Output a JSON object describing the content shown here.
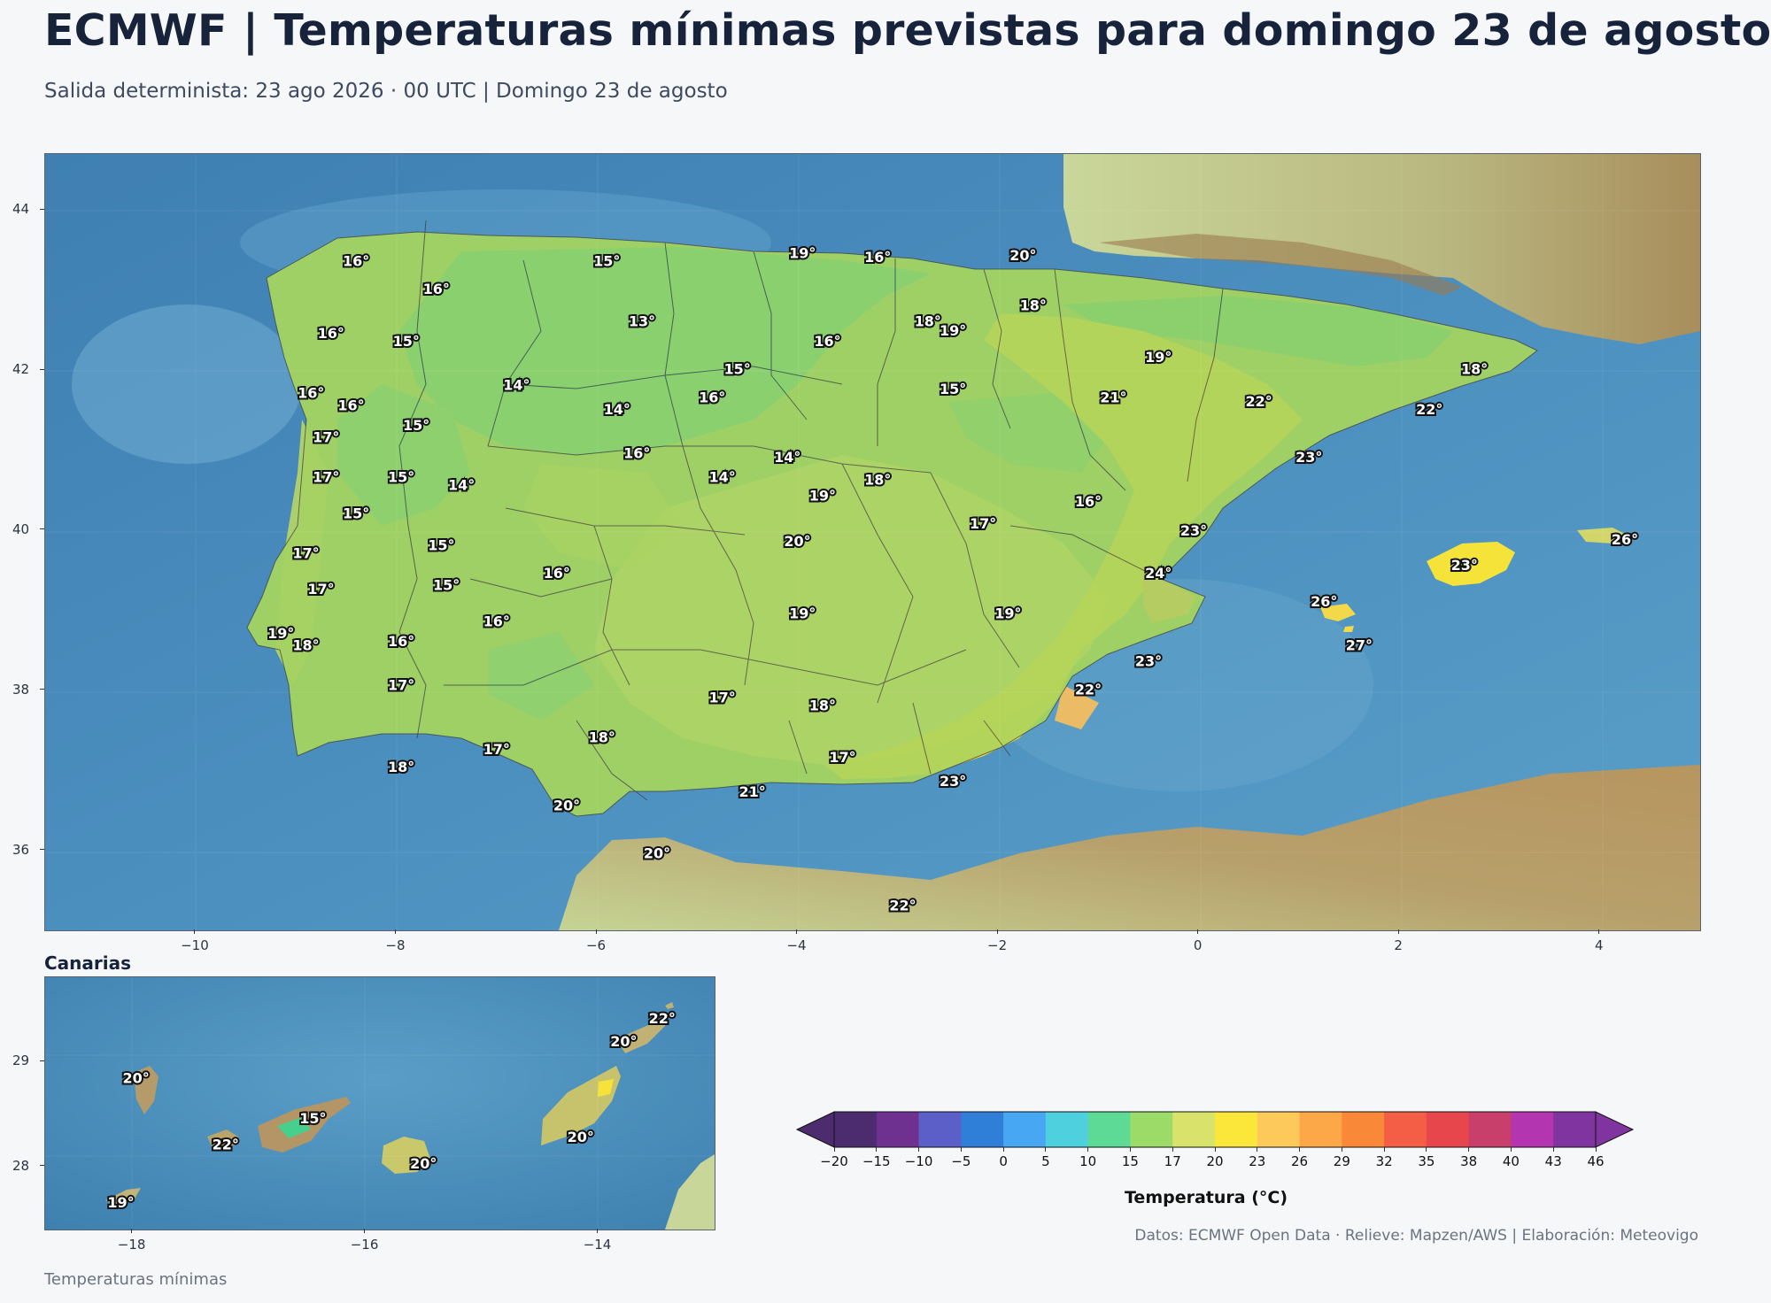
{
  "title": "ECMWF | Temperaturas mínimas previstas para domingo 23 de agosto",
  "subtitle": "Salida determinista: 23 ago 2026 · 00 UTC  |  Domingo 23 de agosto",
  "main_map": {
    "lon_range": [
      -11.5,
      5.0
    ],
    "lat_range": [
      35.0,
      44.7
    ],
    "x_ticks": [
      "−10",
      "−8",
      "−6",
      "−4",
      "−2",
      "0",
      "2",
      "4"
    ],
    "y_ticks": [
      "36",
      "38",
      "40",
      "42",
      "44"
    ],
    "labels": [
      {
        "text": "16°",
        "lon": -8.4,
        "lat": 43.35
      },
      {
        "text": "15°",
        "lon": -5.9,
        "lat": 43.35
      },
      {
        "text": "19°",
        "lon": -3.95,
        "lat": 43.45
      },
      {
        "text": "16°",
        "lon": -3.2,
        "lat": 43.4
      },
      {
        "text": "20°",
        "lon": -1.75,
        "lat": 43.42
      },
      {
        "text": "16°",
        "lon": -7.6,
        "lat": 43.0
      },
      {
        "text": "18°",
        "lon": -1.65,
        "lat": 42.8
      },
      {
        "text": "13°",
        "lon": -5.55,
        "lat": 42.6
      },
      {
        "text": "18°",
        "lon": -2.7,
        "lat": 42.6
      },
      {
        "text": "19°",
        "lon": -2.45,
        "lat": 42.48
      },
      {
        "text": "16°",
        "lon": -8.65,
        "lat": 42.45
      },
      {
        "text": "15°",
        "lon": -7.9,
        "lat": 42.35
      },
      {
        "text": "16°",
        "lon": -3.7,
        "lat": 42.35
      },
      {
        "text": "19°",
        "lon": -0.4,
        "lat": 42.15
      },
      {
        "text": "15°",
        "lon": -4.6,
        "lat": 42.0
      },
      {
        "text": "18°",
        "lon": 2.75,
        "lat": 42.0
      },
      {
        "text": "14°",
        "lon": -6.8,
        "lat": 41.8
      },
      {
        "text": "15°",
        "lon": -2.45,
        "lat": 41.75
      },
      {
        "text": "16°",
        "lon": -8.85,
        "lat": 41.7
      },
      {
        "text": "16°",
        "lon": -4.85,
        "lat": 41.65
      },
      {
        "text": "21°",
        "lon": -0.85,
        "lat": 41.65
      },
      {
        "text": "22°",
        "lon": 0.6,
        "lat": 41.6
      },
      {
        "text": "16°",
        "lon": -8.45,
        "lat": 41.55
      },
      {
        "text": "14°",
        "lon": -5.8,
        "lat": 41.5
      },
      {
        "text": "22°",
        "lon": 2.3,
        "lat": 41.5
      },
      {
        "text": "15°",
        "lon": -7.8,
        "lat": 41.3
      },
      {
        "text": "17°",
        "lon": -8.7,
        "lat": 41.15
      },
      {
        "text": "16°",
        "lon": -5.6,
        "lat": 40.95
      },
      {
        "text": "14°",
        "lon": -4.1,
        "lat": 40.9
      },
      {
        "text": "23°",
        "lon": 1.1,
        "lat": 40.9
      },
      {
        "text": "17°",
        "lon": -8.7,
        "lat": 40.65
      },
      {
        "text": "15°",
        "lon": -7.95,
        "lat": 40.65
      },
      {
        "text": "14°",
        "lon": -7.35,
        "lat": 40.55
      },
      {
        "text": "14°",
        "lon": -4.75,
        "lat": 40.65
      },
      {
        "text": "18°",
        "lon": -3.2,
        "lat": 40.62
      },
      {
        "text": "19°",
        "lon": -3.75,
        "lat": 40.42
      },
      {
        "text": "16°",
        "lon": -1.1,
        "lat": 40.35
      },
      {
        "text": "15°",
        "lon": -8.4,
        "lat": 40.2
      },
      {
        "text": "17°",
        "lon": -2.15,
        "lat": 40.07
      },
      {
        "text": "23°",
        "lon": -0.05,
        "lat": 39.98
      },
      {
        "text": "15°",
        "lon": -7.55,
        "lat": 39.8
      },
      {
        "text": "20°",
        "lon": -4.0,
        "lat": 39.85
      },
      {
        "text": "26°",
        "lon": 4.25,
        "lat": 39.87
      },
      {
        "text": "17°",
        "lon": -8.9,
        "lat": 39.7
      },
      {
        "text": "23°",
        "lon": 2.65,
        "lat": 39.55
      },
      {
        "text": "16°",
        "lon": -6.4,
        "lat": 39.45
      },
      {
        "text": "24°",
        "lon": -0.4,
        "lat": 39.45
      },
      {
        "text": "15°",
        "lon": -7.5,
        "lat": 39.3
      },
      {
        "text": "17°",
        "lon": -8.75,
        "lat": 39.25
      },
      {
        "text": "26°",
        "lon": 1.25,
        "lat": 39.1
      },
      {
        "text": "19°",
        "lon": -3.95,
        "lat": 38.95
      },
      {
        "text": "19°",
        "lon": -1.9,
        "lat": 38.95
      },
      {
        "text": "16°",
        "lon": -7.0,
        "lat": 38.85
      },
      {
        "text": "19°",
        "lon": -9.15,
        "lat": 38.7
      },
      {
        "text": "18°",
        "lon": -8.9,
        "lat": 38.55
      },
      {
        "text": "16°",
        "lon": -7.95,
        "lat": 38.6
      },
      {
        "text": "27°",
        "lon": 1.6,
        "lat": 38.55
      },
      {
        "text": "23°",
        "lon": -0.5,
        "lat": 38.35
      },
      {
        "text": "17°",
        "lon": -7.95,
        "lat": 38.05
      },
      {
        "text": "22°",
        "lon": -1.1,
        "lat": 38.0
      },
      {
        "text": "17°",
        "lon": -4.75,
        "lat": 37.9
      },
      {
        "text": "18°",
        "lon": -3.75,
        "lat": 37.8
      },
      {
        "text": "18°",
        "lon": -5.95,
        "lat": 37.4
      },
      {
        "text": "17°",
        "lon": -7.0,
        "lat": 37.25
      },
      {
        "text": "17°",
        "lon": -3.55,
        "lat": 37.15
      },
      {
        "text": "18°",
        "lon": -7.95,
        "lat": 37.03
      },
      {
        "text": "23°",
        "lon": -2.45,
        "lat": 36.85
      },
      {
        "text": "21°",
        "lon": -4.45,
        "lat": 36.72
      },
      {
        "text": "20°",
        "lon": -6.3,
        "lat": 36.55
      },
      {
        "text": "20°",
        "lon": -5.4,
        "lat": 35.95
      },
      {
        "text": "22°",
        "lon": -2.95,
        "lat": 35.3
      }
    ]
  },
  "inset": {
    "title": "Canarias",
    "lon_range": [
      -18.75,
      -13.0
    ],
    "lat_range": [
      27.4,
      29.8
    ],
    "x_ticks": [
      "−18",
      "−16",
      "−14"
    ],
    "y_ticks": [
      "28",
      "29"
    ],
    "labels": [
      {
        "text": "20°",
        "lon": -17.97,
        "lat": 28.83
      },
      {
        "text": "15°",
        "lon": -16.45,
        "lat": 28.45
      },
      {
        "text": "22°",
        "lon": -17.2,
        "lat": 28.2
      },
      {
        "text": "20°",
        "lon": -15.5,
        "lat": 28.02
      },
      {
        "text": "19°",
        "lon": -18.1,
        "lat": 27.65
      },
      {
        "text": "20°",
        "lon": -14.15,
        "lat": 28.27
      },
      {
        "text": "20°",
        "lon": -13.78,
        "lat": 29.18
      },
      {
        "text": "22°",
        "lon": -13.45,
        "lat": 29.4
      }
    ],
    "footer": "Temperaturas mínimas"
  },
  "colorbar": {
    "label": "Temperatura (°C)",
    "ticks": [
      "−20",
      "−15",
      "−10",
      "−5",
      "0",
      "5",
      "10",
      "15",
      "17",
      "20",
      "23",
      "26",
      "29",
      "32",
      "35",
      "38",
      "40",
      "43",
      "46"
    ],
    "colors": [
      "#4c2c6e",
      "#6f3190",
      "#5b5fc7",
      "#2f7fd8",
      "#47a7f2",
      "#4fd0de",
      "#5ddb96",
      "#9ddb68",
      "#d9e26b",
      "#fbe63a",
      "#fdc95a",
      "#fca848",
      "#f98838",
      "#f55e46",
      "#e6464c",
      "#c93f6b",
      "#b336b0",
      "#7f34a0"
    ]
  },
  "credits": "Datos: ECMWF Open Data · Relieve: Mapzen/AWS  |  Elaboración: Meteovigo"
}
